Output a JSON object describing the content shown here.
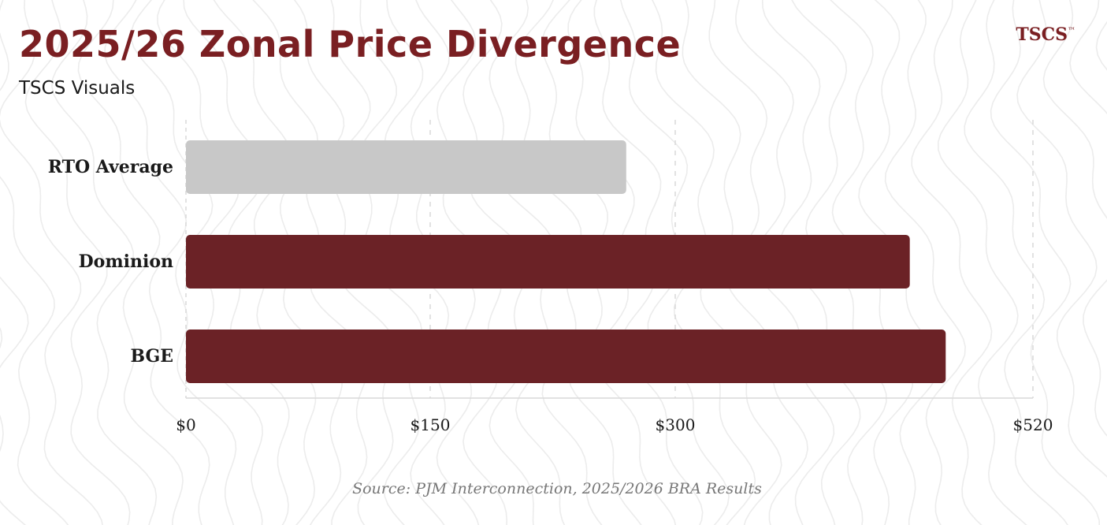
{
  "header": {
    "title": "2025/26 Zonal Price Divergence",
    "subtitle": "TSCS Visuals",
    "brand": "TSCS",
    "brand_mark": "™"
  },
  "footer": {
    "source": "Source: PJM Interconnection, 2025/2026 BRA Results"
  },
  "colors": {
    "accent": "#7a1f22",
    "bar_highlight": "#6b2226",
    "bar_muted": "#c8c8c8",
    "text": "#1a1a1a",
    "grid": "#d9d9d9",
    "background_lines": "#ececec"
  },
  "chart_data": {
    "type": "bar",
    "orientation": "horizontal",
    "title": "2025/26 Zonal Price Divergence",
    "categories": [
      "RTO Average",
      "Dominion",
      "BGE"
    ],
    "values": [
      270,
      444.26,
      466.35
    ],
    "highlight": [
      false,
      true,
      true
    ],
    "xlabel": "",
    "ylabel": "",
    "ticks": [
      {
        "value": 0,
        "label": "$0"
      },
      {
        "value": 150,
        "label": "$150"
      },
      {
        "value": 300,
        "label": "$300"
      },
      {
        "value": 520,
        "label": "$520"
      }
    ],
    "grid": true,
    "legend": "none"
  }
}
